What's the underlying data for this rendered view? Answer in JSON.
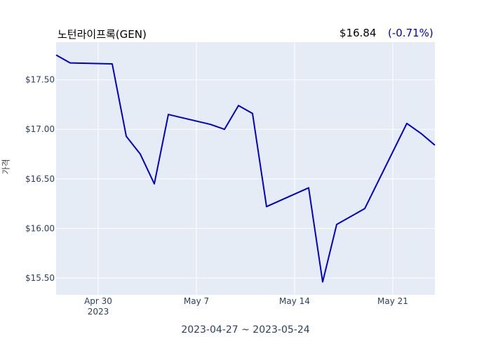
{
  "header": {
    "title": "노턴라이프록(GEN)",
    "price": "$16.84",
    "change": "(-0.71%)"
  },
  "colors": {
    "plot_bg": "#e5ecf6",
    "line": "#0000cc",
    "grid": "#ffffff",
    "change": "#0000cc"
  },
  "chart_data": {
    "type": "line",
    "ylabel": "가격",
    "xlabel": "2023-04-27 ~ 2023-05-24",
    "x": [
      "2023-04-27",
      "2023-04-28",
      "2023-05-01",
      "2023-05-02",
      "2023-05-03",
      "2023-05-04",
      "2023-05-05",
      "2023-05-08",
      "2023-05-09",
      "2023-05-10",
      "2023-05-11",
      "2023-05-12",
      "2023-05-15",
      "2023-05-16",
      "2023-05-17",
      "2023-05-19",
      "2023-05-22",
      "2023-05-23",
      "2023-05-24"
    ],
    "values": [
      17.75,
      17.67,
      17.66,
      16.93,
      16.75,
      16.45,
      17.15,
      17.05,
      17.0,
      17.24,
      17.16,
      16.22,
      16.41,
      15.46,
      16.04,
      16.2,
      17.06,
      16.96,
      16.84
    ],
    "xlim": [
      "2023-04-27",
      "2023-05-24"
    ],
    "ylim": [
      15.33,
      17.88
    ],
    "yticks": [
      15.5,
      16.0,
      16.5,
      17.0,
      17.5
    ],
    "ytick_labels": [
      "$15.50",
      "$16.00",
      "$16.50",
      "$17.00",
      "$17.50"
    ],
    "xticks": [
      "2023-04-30",
      "2023-05-07",
      "2023-05-14",
      "2023-05-21"
    ],
    "xtick_labels": [
      [
        "Apr 30",
        "2023"
      ],
      [
        "May 7"
      ],
      [
        "May 14"
      ],
      [
        "May 21"
      ]
    ],
    "grid": true,
    "legend": false
  }
}
